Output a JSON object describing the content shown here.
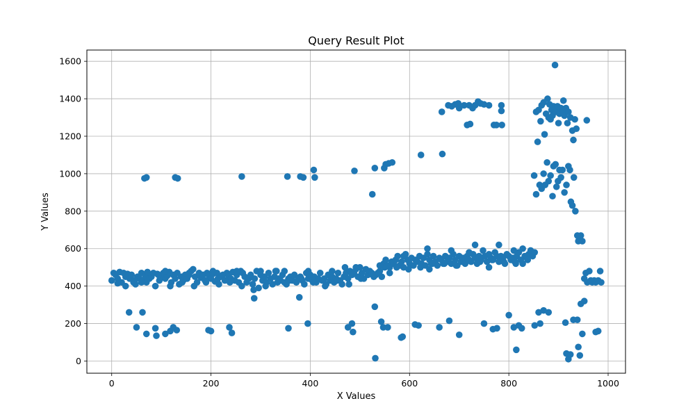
{
  "chart_data": {
    "type": "scatter",
    "title": "Query Result Plot",
    "xlabel": "X Values",
    "ylabel": "Y Values",
    "xlim": [
      -50,
      1035
    ],
    "ylim": [
      -65,
      1660
    ],
    "xticks": [
      0,
      200,
      400,
      600,
      800,
      1000
    ],
    "yticks": [
      0,
      200,
      400,
      600,
      800,
      1000,
      1200,
      1400,
      1600
    ],
    "grid": true,
    "color": "#1f77b4",
    "points": [
      [
        0,
        430
      ],
      [
        4,
        470
      ],
      [
        8,
        460
      ],
      [
        12,
        440
      ],
      [
        16,
        475
      ],
      [
        20,
        420
      ],
      [
        24,
        470
      ],
      [
        28,
        450
      ],
      [
        32,
        465
      ],
      [
        36,
        440
      ],
      [
        40,
        460
      ],
      [
        44,
        420
      ],
      [
        48,
        410
      ],
      [
        52,
        450
      ],
      [
        56,
        440
      ],
      [
        60,
        470
      ],
      [
        64,
        430
      ],
      [
        68,
        455
      ],
      [
        72,
        475
      ],
      [
        76,
        440
      ],
      [
        80,
        450
      ],
      [
        84,
        470
      ],
      [
        88,
        400
      ],
      [
        92,
        465
      ],
      [
        96,
        430
      ],
      [
        100,
        450
      ],
      [
        104,
        470
      ],
      [
        108,
        440
      ],
      [
        112,
        455
      ],
      [
        116,
        475
      ],
      [
        120,
        420
      ],
      [
        124,
        460
      ],
      [
        128,
        440
      ],
      [
        132,
        470
      ],
      [
        136,
        410
      ],
      [
        140,
        450
      ],
      [
        144,
        430
      ],
      [
        148,
        460
      ],
      [
        152,
        440
      ],
      [
        156,
        470
      ],
      [
        160,
        480
      ],
      [
        164,
        490
      ],
      [
        168,
        450
      ],
      [
        172,
        420
      ],
      [
        176,
        470
      ],
      [
        180,
        445
      ],
      [
        184,
        460
      ],
      [
        188,
        430
      ],
      [
        192,
        470
      ],
      [
        196,
        455
      ],
      [
        200,
        440
      ],
      [
        204,
        465
      ],
      [
        208,
        425
      ],
      [
        212,
        470
      ],
      [
        216,
        410
      ],
      [
        220,
        450
      ],
      [
        224,
        460
      ],
      [
        228,
        430
      ],
      [
        232,
        470
      ],
      [
        236,
        450
      ],
      [
        240,
        440
      ],
      [
        244,
        475
      ],
      [
        248,
        430
      ],
      [
        252,
        460
      ],
      [
        256,
        420
      ],
      [
        260,
        480
      ],
      [
        264,
        470
      ],
      [
        268,
        450
      ],
      [
        272,
        420
      ],
      [
        276,
        440
      ],
      [
        280,
        460
      ],
      [
        284,
        410
      ],
      [
        288,
        440
      ],
      [
        292,
        480
      ],
      [
        296,
        390
      ],
      [
        300,
        460
      ],
      [
        304,
        430
      ],
      [
        308,
        450
      ],
      [
        312,
        420
      ],
      [
        316,
        470
      ],
      [
        320,
        440
      ],
      [
        324,
        410
      ],
      [
        328,
        450
      ],
      [
        332,
        480
      ],
      [
        336,
        440
      ],
      [
        340,
        430
      ],
      [
        344,
        460
      ],
      [
        348,
        420
      ],
      [
        352,
        410
      ],
      [
        356,
        440
      ],
      [
        360,
        450
      ],
      [
        364,
        430
      ],
      [
        368,
        460
      ],
      [
        372,
        420
      ],
      [
        376,
        440
      ],
      [
        380,
        450
      ],
      [
        384,
        430
      ],
      [
        388,
        410
      ],
      [
        392,
        470
      ],
      [
        396,
        440
      ],
      [
        400,
        460
      ],
      [
        404,
        430
      ],
      [
        408,
        450
      ],
      [
        412,
        420
      ],
      [
        416,
        440
      ],
      [
        420,
        470
      ],
      [
        424,
        430
      ],
      [
        428,
        440
      ],
      [
        432,
        410
      ],
      [
        436,
        460
      ],
      [
        440,
        430
      ],
      [
        444,
        450
      ],
      [
        448,
        420
      ],
      [
        452,
        440
      ],
      [
        456,
        470
      ],
      [
        460,
        430
      ],
      [
        464,
        410
      ],
      [
        468,
        450
      ],
      [
        472,
        470
      ],
      [
        476,
        440
      ],
      [
        480,
        480
      ],
      [
        484,
        460
      ],
      [
        488,
        470
      ],
      [
        492,
        490
      ],
      [
        496,
        450
      ],
      [
        500,
        500
      ],
      [
        504,
        470
      ],
      [
        508,
        440
      ],
      [
        512,
        490
      ],
      [
        516,
        460
      ],
      [
        520,
        480
      ],
      [
        524,
        470
      ],
      [
        528,
        450
      ],
      [
        532,
        460
      ],
      [
        536,
        470
      ],
      [
        540,
        480
      ],
      [
        544,
        450
      ],
      [
        548,
        520
      ],
      [
        552,
        540
      ],
      [
        556,
        510
      ],
      [
        560,
        500
      ],
      [
        564,
        530
      ],
      [
        568,
        520
      ],
      [
        572,
        540
      ],
      [
        576,
        560
      ],
      [
        580,
        510
      ],
      [
        584,
        530
      ],
      [
        588,
        500
      ],
      [
        592,
        570
      ],
      [
        596,
        540
      ],
      [
        600,
        520
      ],
      [
        604,
        550
      ],
      [
        608,
        510
      ],
      [
        612,
        540
      ],
      [
        616,
        530
      ],
      [
        620,
        560
      ],
      [
        624,
        520
      ],
      [
        628,
        550
      ],
      [
        632,
        510
      ],
      [
        636,
        570
      ],
      [
        640,
        540
      ],
      [
        644,
        520
      ],
      [
        648,
        560
      ],
      [
        652,
        530
      ],
      [
        656,
        510
      ],
      [
        660,
        550
      ],
      [
        664,
        540
      ],
      [
        668,
        520
      ],
      [
        672,
        560
      ],
      [
        676,
        530
      ],
      [
        680,
        550
      ],
      [
        684,
        520
      ],
      [
        688,
        570
      ],
      [
        692,
        540
      ],
      [
        696,
        510
      ],
      [
        700,
        560
      ],
      [
        704,
        530
      ],
      [
        708,
        550
      ],
      [
        712,
        520
      ],
      [
        716,
        560
      ],
      [
        720,
        540
      ],
      [
        724,
        530
      ],
      [
        728,
        570
      ],
      [
        732,
        550
      ],
      [
        736,
        520
      ],
      [
        740,
        560
      ],
      [
        744,
        540
      ],
      [
        748,
        590
      ],
      [
        752,
        560
      ],
      [
        756,
        530
      ],
      [
        760,
        570
      ],
      [
        764,
        550
      ],
      [
        768,
        540
      ],
      [
        772,
        580
      ],
      [
        776,
        560
      ],
      [
        780,
        530
      ],
      [
        784,
        560
      ],
      [
        788,
        550
      ],
      [
        792,
        520
      ],
      [
        796,
        570
      ],
      [
        800,
        560
      ],
      [
        804,
        540
      ],
      [
        808,
        550
      ],
      [
        812,
        530
      ],
      [
        816,
        560
      ],
      [
        820,
        580
      ],
      [
        824,
        540
      ],
      [
        828,
        520
      ],
      [
        832,
        560
      ],
      [
        836,
        550
      ],
      [
        840,
        570
      ],
      [
        844,
        590
      ],
      [
        848,
        560
      ],
      [
        852,
        580
      ],
      [
        12,
        415
      ],
      [
        28,
        400
      ],
      [
        46,
        430
      ],
      [
        70,
        420
      ],
      [
        94,
        460
      ],
      [
        118,
        400
      ],
      [
        142,
        420
      ],
      [
        166,
        400
      ],
      [
        190,
        420
      ],
      [
        214,
        440
      ],
      [
        238,
        420
      ],
      [
        262,
        400
      ],
      [
        286,
        380
      ],
      [
        310,
        400
      ],
      [
        334,
        420
      ],
      [
        358,
        430
      ],
      [
        382,
        440
      ],
      [
        406,
        420
      ],
      [
        430,
        400
      ],
      [
        454,
        430
      ],
      [
        478,
        410
      ],
      [
        502,
        440
      ],
      [
        526,
        460
      ],
      [
        550,
        500
      ],
      [
        574,
        500
      ],
      [
        598,
        490
      ],
      [
        622,
        500
      ],
      [
        646,
        520
      ],
      [
        670,
        520
      ],
      [
        694,
        510
      ],
      [
        718,
        540
      ],
      [
        742,
        530
      ],
      [
        766,
        540
      ],
      [
        790,
        530
      ],
      [
        814,
        520
      ],
      [
        838,
        540
      ],
      [
        60,
        420
      ],
      [
        108,
        480
      ],
      [
        156,
        460
      ],
      [
        204,
        480
      ],
      [
        252,
        480
      ],
      [
        300,
        480
      ],
      [
        348,
        480
      ],
      [
        396,
        480
      ],
      [
        444,
        480
      ],
      [
        492,
        500
      ],
      [
        540,
        510
      ],
      [
        588,
        560
      ],
      [
        636,
        600
      ],
      [
        684,
        590
      ],
      [
        732,
        620
      ],
      [
        780,
        620
      ],
      [
        828,
        600
      ],
      [
        330,
        480
      ],
      [
        470,
        500
      ],
      [
        560,
        470
      ],
      [
        640,
        490
      ],
      [
        720,
        580
      ],
      [
        760,
        500
      ],
      [
        810,
        590
      ],
      [
        66,
        975
      ],
      [
        70,
        980
      ],
      [
        128,
        980
      ],
      [
        133,
        975
      ],
      [
        262,
        985
      ],
      [
        354,
        985
      ],
      [
        380,
        985
      ],
      [
        386,
        980
      ],
      [
        407,
        1020
      ],
      [
        409,
        980
      ],
      [
        489,
        1015
      ],
      [
        525,
        890
      ],
      [
        530,
        1030
      ],
      [
        549,
        1030
      ],
      [
        552,
        1050
      ],
      [
        558,
        1055
      ],
      [
        565,
        1060
      ],
      [
        623,
        1100
      ],
      [
        666,
        1105
      ],
      [
        665,
        1330
      ],
      [
        678,
        1365
      ],
      [
        685,
        1360
      ],
      [
        692,
        1370
      ],
      [
        698,
        1375
      ],
      [
        700,
        1350
      ],
      [
        710,
        1365
      ],
      [
        716,
        1260
      ],
      [
        720,
        1365
      ],
      [
        722,
        1265
      ],
      [
        727,
        1350
      ],
      [
        732,
        1365
      ],
      [
        738,
        1385
      ],
      [
        743,
        1375
      ],
      [
        750,
        1370
      ],
      [
        760,
        1365
      ],
      [
        770,
        1260
      ],
      [
        775,
        1260
      ],
      [
        785,
        1335
      ],
      [
        785,
        1365
      ],
      [
        786,
        1260
      ],
      [
        855,
        1330
      ],
      [
        858,
        1170
      ],
      [
        860,
        1340
      ],
      [
        864,
        1280
      ],
      [
        866,
        1365
      ],
      [
        870,
        1380
      ],
      [
        872,
        1210
      ],
      [
        875,
        1320
      ],
      [
        878,
        1400
      ],
      [
        880,
        1300
      ],
      [
        882,
        1370
      ],
      [
        884,
        1290
      ],
      [
        886,
        1340
      ],
      [
        888,
        1310
      ],
      [
        890,
        1360
      ],
      [
        893,
        1580
      ],
      [
        895,
        1330
      ],
      [
        898,
        1360
      ],
      [
        900,
        1270
      ],
      [
        902,
        1320
      ],
      [
        905,
        1350
      ],
      [
        908,
        1330
      ],
      [
        910,
        1390
      ],
      [
        912,
        1310
      ],
      [
        915,
        1350
      ],
      [
        918,
        1270
      ],
      [
        920,
        1330
      ],
      [
        924,
        1300
      ],
      [
        928,
        1230
      ],
      [
        930,
        1180
      ],
      [
        933,
        1290
      ],
      [
        936,
        1240
      ],
      [
        957,
        1285
      ],
      [
        851,
        990
      ],
      [
        855,
        890
      ],
      [
        862,
        940
      ],
      [
        866,
        920
      ],
      [
        870,
        1000
      ],
      [
        873,
        940
      ],
      [
        877,
        1060
      ],
      [
        880,
        960
      ],
      [
        884,
        990
      ],
      [
        888,
        880
      ],
      [
        890,
        1040
      ],
      [
        894,
        1050
      ],
      [
        896,
        930
      ],
      [
        899,
        960
      ],
      [
        902,
        1020
      ],
      [
        905,
        980
      ],
      [
        908,
        1020
      ],
      [
        912,
        900
      ],
      [
        916,
        940
      ],
      [
        920,
        1040
      ],
      [
        923,
        1020
      ],
      [
        925,
        850
      ],
      [
        928,
        830
      ],
      [
        931,
        980
      ],
      [
        934,
        800
      ],
      [
        938,
        670
      ],
      [
        940,
        640
      ],
      [
        945,
        670
      ],
      [
        948,
        640
      ],
      [
        952,
        440
      ],
      [
        955,
        470
      ],
      [
        958,
        420
      ],
      [
        962,
        480
      ],
      [
        965,
        430
      ],
      [
        968,
        420
      ],
      [
        972,
        430
      ],
      [
        975,
        420
      ],
      [
        980,
        430
      ],
      [
        984,
        480
      ],
      [
        986,
        420
      ],
      [
        35,
        260
      ],
      [
        50,
        180
      ],
      [
        62,
        260
      ],
      [
        70,
        145
      ],
      [
        88,
        175
      ],
      [
        90,
        135
      ],
      [
        108,
        145
      ],
      [
        118,
        160
      ],
      [
        124,
        180
      ],
      [
        131,
        165
      ],
      [
        195,
        165
      ],
      [
        200,
        160
      ],
      [
        237,
        180
      ],
      [
        242,
        150
      ],
      [
        287,
        335
      ],
      [
        378,
        340
      ],
      [
        356,
        175
      ],
      [
        395,
        200
      ],
      [
        476,
        180
      ],
      [
        484,
        200
      ],
      [
        486,
        155
      ],
      [
        530,
        290
      ],
      [
        531,
        15
      ],
      [
        543,
        210
      ],
      [
        547,
        180
      ],
      [
        556,
        180
      ],
      [
        583,
        125
      ],
      [
        586,
        130
      ],
      [
        611,
        195
      ],
      [
        618,
        190
      ],
      [
        660,
        180
      ],
      [
        680,
        215
      ],
      [
        700,
        140
      ],
      [
        750,
        200
      ],
      [
        768,
        170
      ],
      [
        776,
        175
      ],
      [
        800,
        245
      ],
      [
        810,
        180
      ],
      [
        815,
        60
      ],
      [
        820,
        190
      ],
      [
        826,
        175
      ],
      [
        852,
        190
      ],
      [
        860,
        260
      ],
      [
        863,
        200
      ],
      [
        870,
        270
      ],
      [
        880,
        260
      ],
      [
        914,
        205
      ],
      [
        916,
        40
      ],
      [
        920,
        10
      ],
      [
        924,
        35
      ],
      [
        930,
        220
      ],
      [
        938,
        220
      ],
      [
        940,
        75
      ],
      [
        943,
        30
      ],
      [
        945,
        305
      ],
      [
        948,
        145
      ],
      [
        952,
        320
      ],
      [
        975,
        155
      ],
      [
        980,
        160
      ]
    ]
  }
}
